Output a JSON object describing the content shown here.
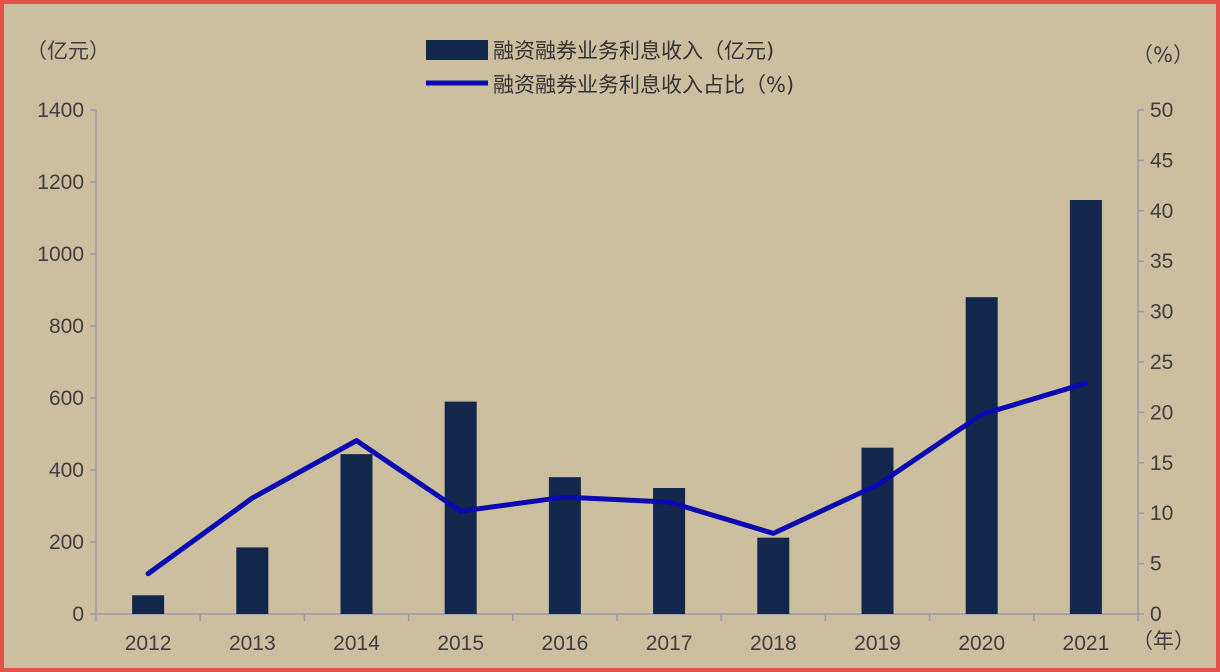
{
  "chart_data": {
    "type": "bar",
    "categories": [
      "2012",
      "2013",
      "2014",
      "2015",
      "2016",
      "2017",
      "2018",
      "2019",
      "2020",
      "2021"
    ],
    "series": [
      {
        "name": "融资融券业务利息收入（亿元)",
        "type": "bar",
        "axis": "left",
        "values": [
          52,
          185,
          444,
          590,
          380,
          350,
          212,
          462,
          880,
          1150
        ]
      },
      {
        "name": "融资融券业务利息收入占比（%)",
        "type": "line",
        "axis": "right",
        "values": [
          4.0,
          11.5,
          17.2,
          10.2,
          11.6,
          11.1,
          8.0,
          12.8,
          19.8,
          22.9
        ]
      }
    ],
    "y_left_unit": "（亿元）",
    "y_right_unit": "（%）",
    "x_unit": "（年）",
    "ylim_left": [
      0,
      1400
    ],
    "ylim_right": [
      0,
      50
    ],
    "y_left_ticks": [
      "0",
      "200",
      "400",
      "600",
      "800",
      "1000",
      "1200",
      "1400"
    ],
    "y_right_ticks": [
      "0",
      "5",
      "10",
      "15",
      "20",
      "25",
      "30",
      "35",
      "40",
      "45",
      "50"
    ],
    "legend_position": "top-center",
    "grid": false,
    "colors": {
      "bar": "#13264c",
      "line": "#0a0ab0",
      "axis": "#9a9aa8",
      "background": "#cbbfa0",
      "border": "#e2524a"
    }
  }
}
